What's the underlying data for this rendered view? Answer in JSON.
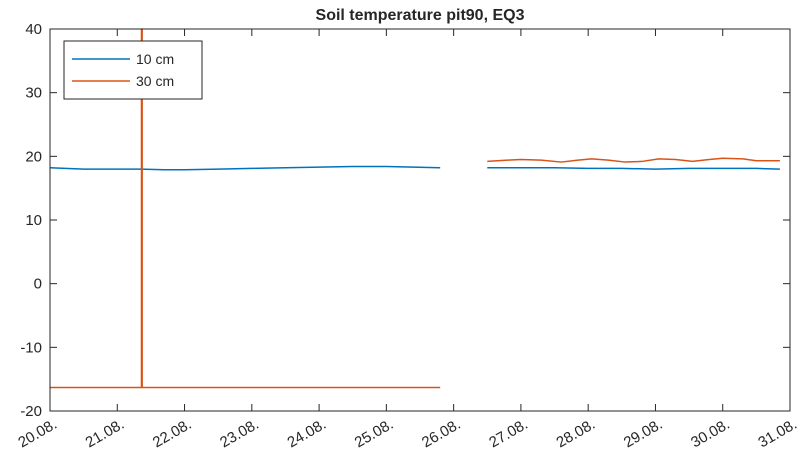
{
  "chart_data": {
    "type": "line",
    "title": "Soil temperature pit90, EQ3",
    "xlabel": "",
    "ylabel": "",
    "xlim": [
      0,
      11
    ],
    "ylim": [
      -20,
      40
    ],
    "x_tick_values": [
      0,
      1,
      2,
      3,
      4,
      5,
      6,
      7,
      8,
      9,
      10,
      11
    ],
    "x_tick_labels": [
      "20.08.",
      "21.08.",
      "22.08.",
      "23.08.",
      "24.08.",
      "25.08.",
      "26.08.",
      "27.08.",
      "28.08.",
      "29.08.",
      "30.08.",
      "31.08."
    ],
    "y_ticks": [
      -20,
      -10,
      0,
      10,
      20,
      30,
      40
    ],
    "legend_position": "top-left",
    "series": [
      {
        "name": "10 cm",
        "color": "#0072bd",
        "segments": [
          [
            [
              0.0,
              18.2
            ],
            [
              0.5,
              18.0
            ],
            [
              1.0,
              18.0
            ],
            [
              1.35,
              18.0
            ],
            [
              1.7,
              17.9
            ],
            [
              2.0,
              17.9
            ],
            [
              2.5,
              18.0
            ],
            [
              3.0,
              18.1
            ],
            [
              3.5,
              18.2
            ],
            [
              4.0,
              18.3
            ],
            [
              4.5,
              18.4
            ],
            [
              5.0,
              18.4
            ],
            [
              5.4,
              18.3
            ],
            [
              5.8,
              18.2
            ]
          ],
          [
            [
              6.5,
              18.2
            ],
            [
              7.0,
              18.2
            ],
            [
              7.5,
              18.2
            ],
            [
              8.0,
              18.1
            ],
            [
              8.5,
              18.1
            ],
            [
              9.0,
              18.0
            ],
            [
              9.5,
              18.1
            ],
            [
              10.0,
              18.1
            ],
            [
              10.5,
              18.1
            ],
            [
              10.85,
              18.0
            ]
          ]
        ]
      },
      {
        "name": "30 cm",
        "color": "#d95319",
        "segments": [
          [
            [
              0.0,
              -16.3
            ],
            [
              1.36,
              -16.3
            ],
            [
              1.36,
              40.0
            ],
            [
              1.37,
              40.0
            ],
            [
              1.37,
              -16.3
            ],
            [
              5.8,
              -16.3
            ]
          ],
          [
            [
              6.5,
              19.2
            ],
            [
              6.8,
              19.4
            ],
            [
              7.0,
              19.5
            ],
            [
              7.3,
              19.4
            ],
            [
              7.6,
              19.1
            ],
            [
              7.85,
              19.4
            ],
            [
              8.05,
              19.6
            ],
            [
              8.3,
              19.4
            ],
            [
              8.55,
              19.1
            ],
            [
              8.8,
              19.2
            ],
            [
              9.05,
              19.6
            ],
            [
              9.3,
              19.5
            ],
            [
              9.55,
              19.2
            ],
            [
              9.8,
              19.5
            ],
            [
              10.0,
              19.7
            ],
            [
              10.3,
              19.6
            ],
            [
              10.5,
              19.3
            ],
            [
              10.85,
              19.3
            ]
          ]
        ]
      }
    ]
  }
}
